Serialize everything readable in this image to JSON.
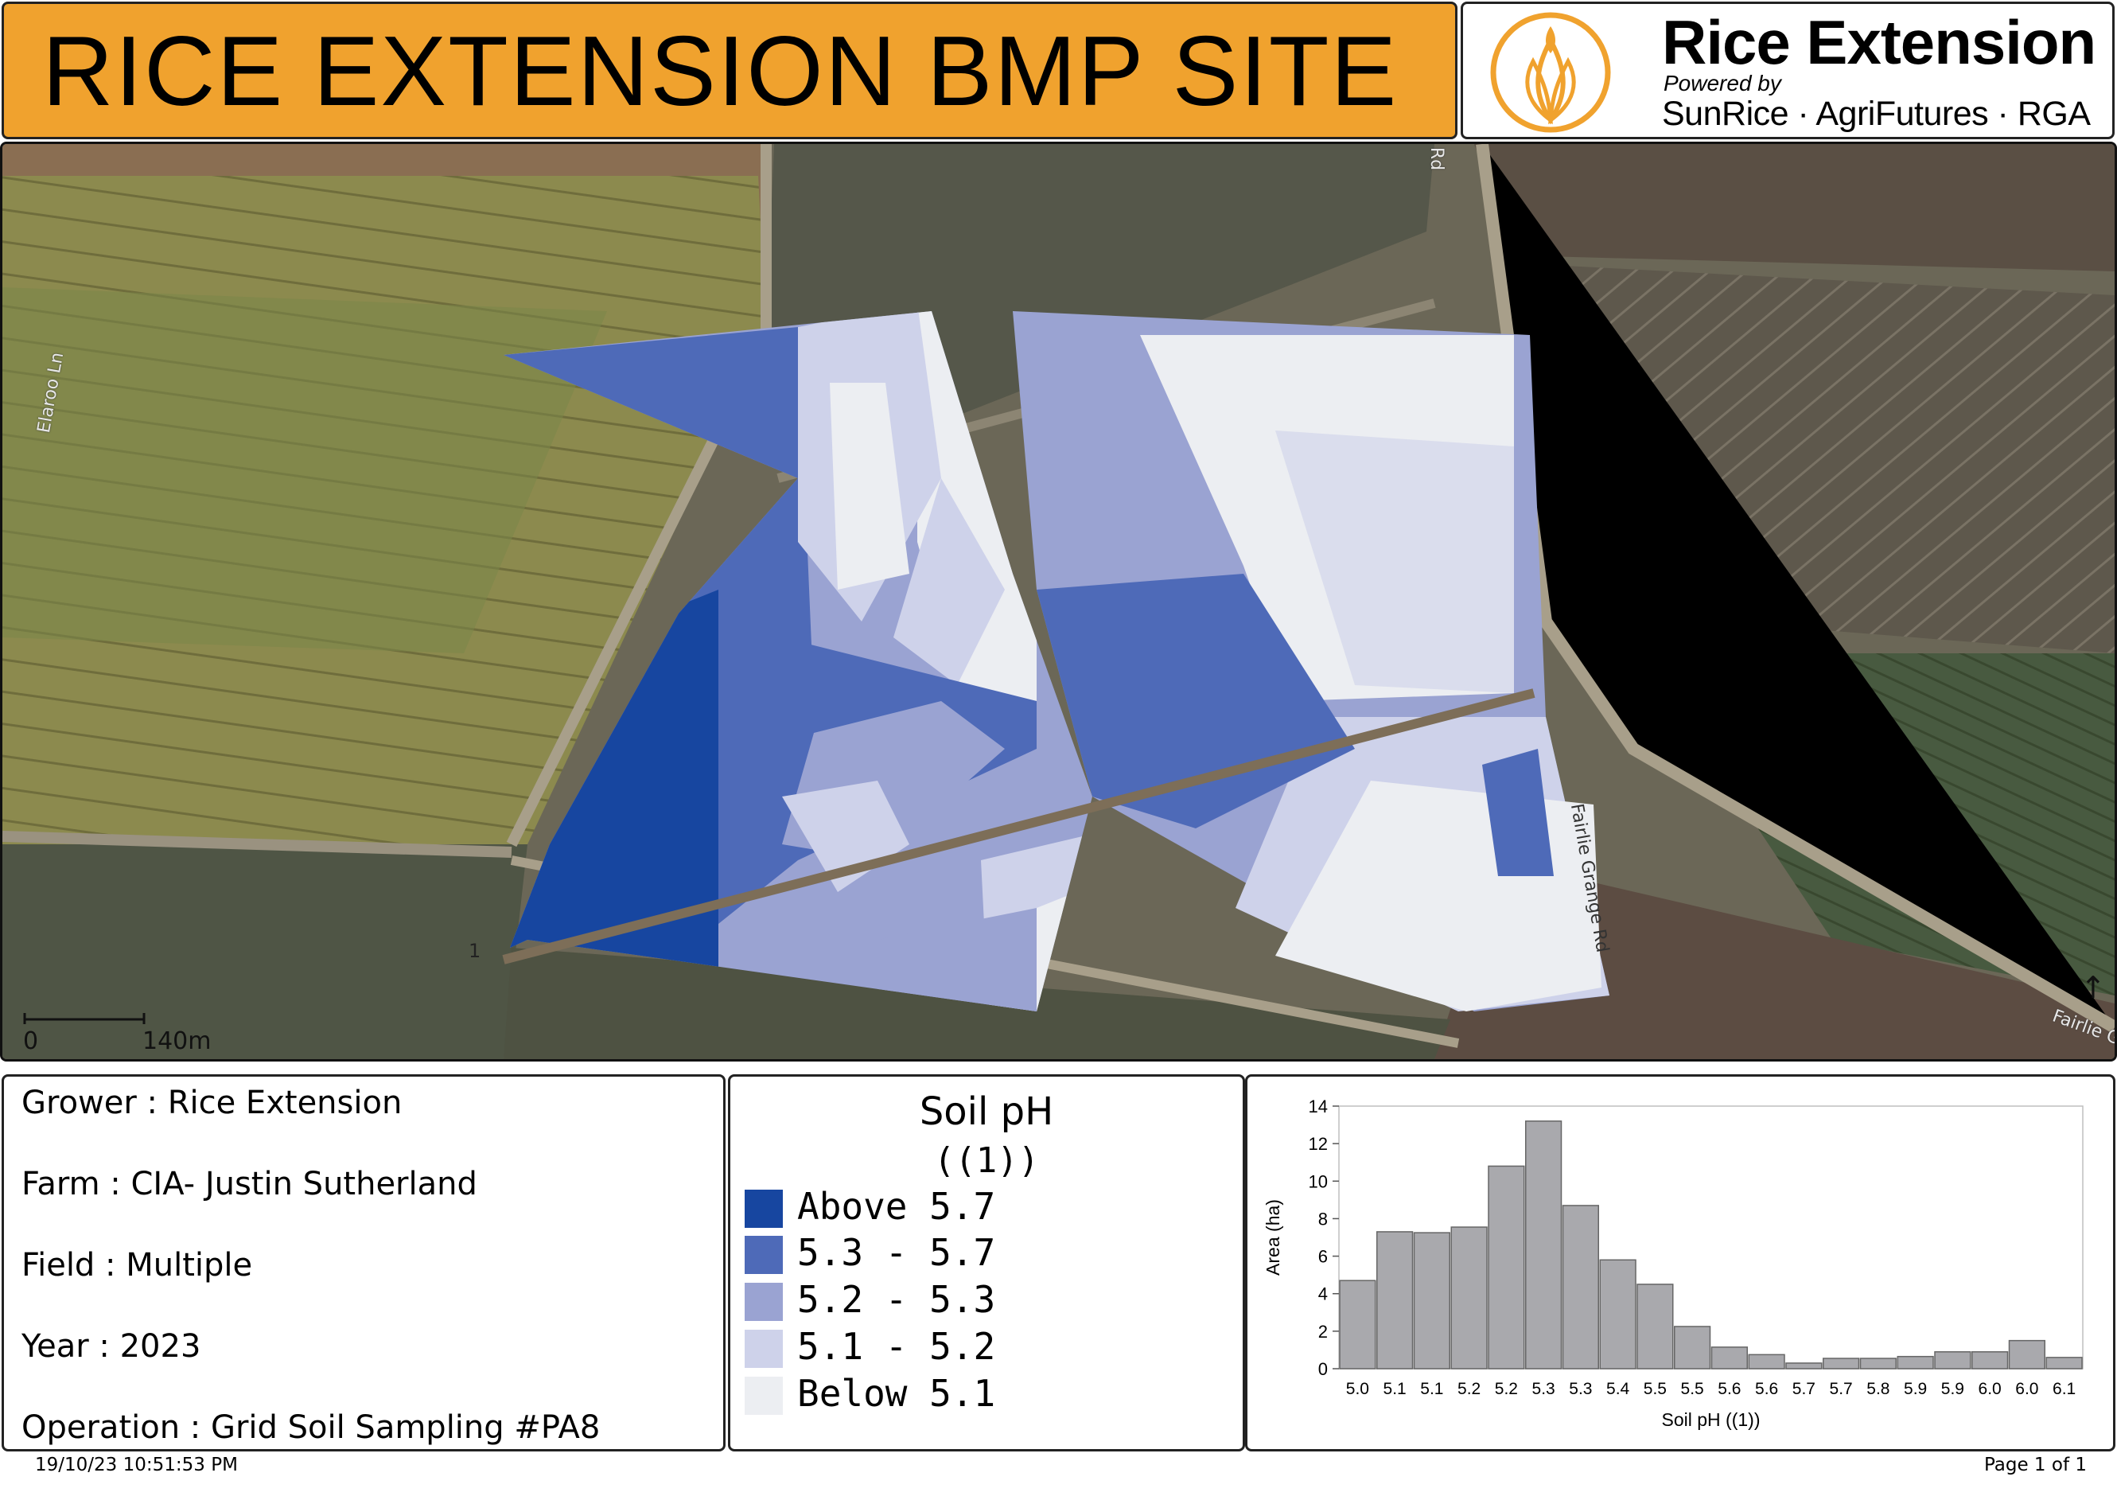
{
  "header": {
    "title": "RICE EXTENSION BMP SITE",
    "brand": "Rice Extension",
    "powered_by": "Powered by",
    "partners": "SunRice · AgriFutures · RGA",
    "brand_color": "#f0a22e"
  },
  "map": {
    "road_labels": [
      "Elaroo Ln",
      "Rd",
      "Fairlie Grange Rd",
      "Fairlie G"
    ],
    "field_marker": "1",
    "scale": {
      "start": "0",
      "end": "140m"
    },
    "north_symbol": "↑"
  },
  "info": {
    "grower": "Grower : Rice Extension",
    "farm": "Farm : CIA- Justin Sutherland",
    "field": "Field : Multiple",
    "year": "Year : 2023",
    "operation": "Operation : Grid Soil Sampling #PA8"
  },
  "legend": {
    "title": "Soil pH",
    "subtitle": "((1))",
    "classes": [
      {
        "label": "Above 5.7",
        "color": "#1746a0"
      },
      {
        "label": "5.3  -  5.7",
        "color": "#4e6ab8"
      },
      {
        "label": "5.2  -  5.3",
        "color": "#9aa3d2"
      },
      {
        "label": "5.1  -  5.2",
        "color": "#ced2ea"
      },
      {
        "label": "Below 5.1",
        "color": "#eceef2"
      }
    ]
  },
  "chart_data": {
    "type": "bar",
    "categories": [
      "5.0",
      "5.1",
      "5.1",
      "5.2",
      "5.2",
      "5.3",
      "5.3",
      "5.4",
      "5.5",
      "5.5",
      "5.6",
      "5.6",
      "5.7",
      "5.7",
      "5.8",
      "5.9",
      "5.9",
      "6.0",
      "6.0",
      "6.1"
    ],
    "values": [
      4.7,
      7.3,
      7.25,
      7.55,
      10.8,
      13.2,
      8.7,
      5.8,
      4.5,
      2.25,
      1.15,
      0.75,
      0.3,
      0.55,
      0.55,
      0.65,
      0.9,
      0.9,
      1.5,
      0.6
    ],
    "xlabel": "Soil pH ((1))",
    "ylabel": "Area (ha)",
    "ylim": [
      0,
      14
    ],
    "yticks": [
      0,
      2,
      4,
      6,
      8,
      10,
      12,
      14
    ],
    "bar_color": "#a9a9ad"
  },
  "footer": {
    "timestamp": "19/10/23 10:51:53 PM",
    "page": "Page 1 of 1"
  }
}
